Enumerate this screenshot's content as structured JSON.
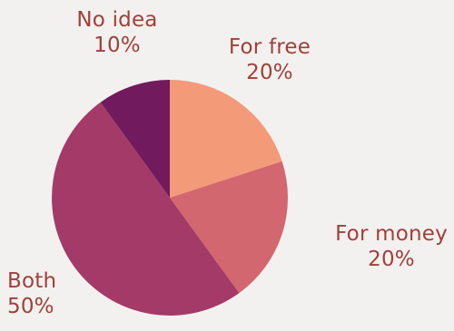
{
  "chart_data": {
    "type": "pie",
    "title": "",
    "slices": [
      {
        "label": "For free",
        "value": 20,
        "display": "20%",
        "color": "#f39a78"
      },
      {
        "label": "For money",
        "value": 20,
        "display": "20%",
        "color": "#d2676f"
      },
      {
        "label": "Both",
        "value": 50,
        "display": "50%",
        "color": "#a43a67"
      },
      {
        "label": "No idea",
        "value": 10,
        "display": "10%",
        "color": "#721a5e"
      }
    ],
    "label_color": "#a0403a",
    "background": "#f2f1ef",
    "start": "12 o'clock",
    "direction": "clockwise"
  }
}
